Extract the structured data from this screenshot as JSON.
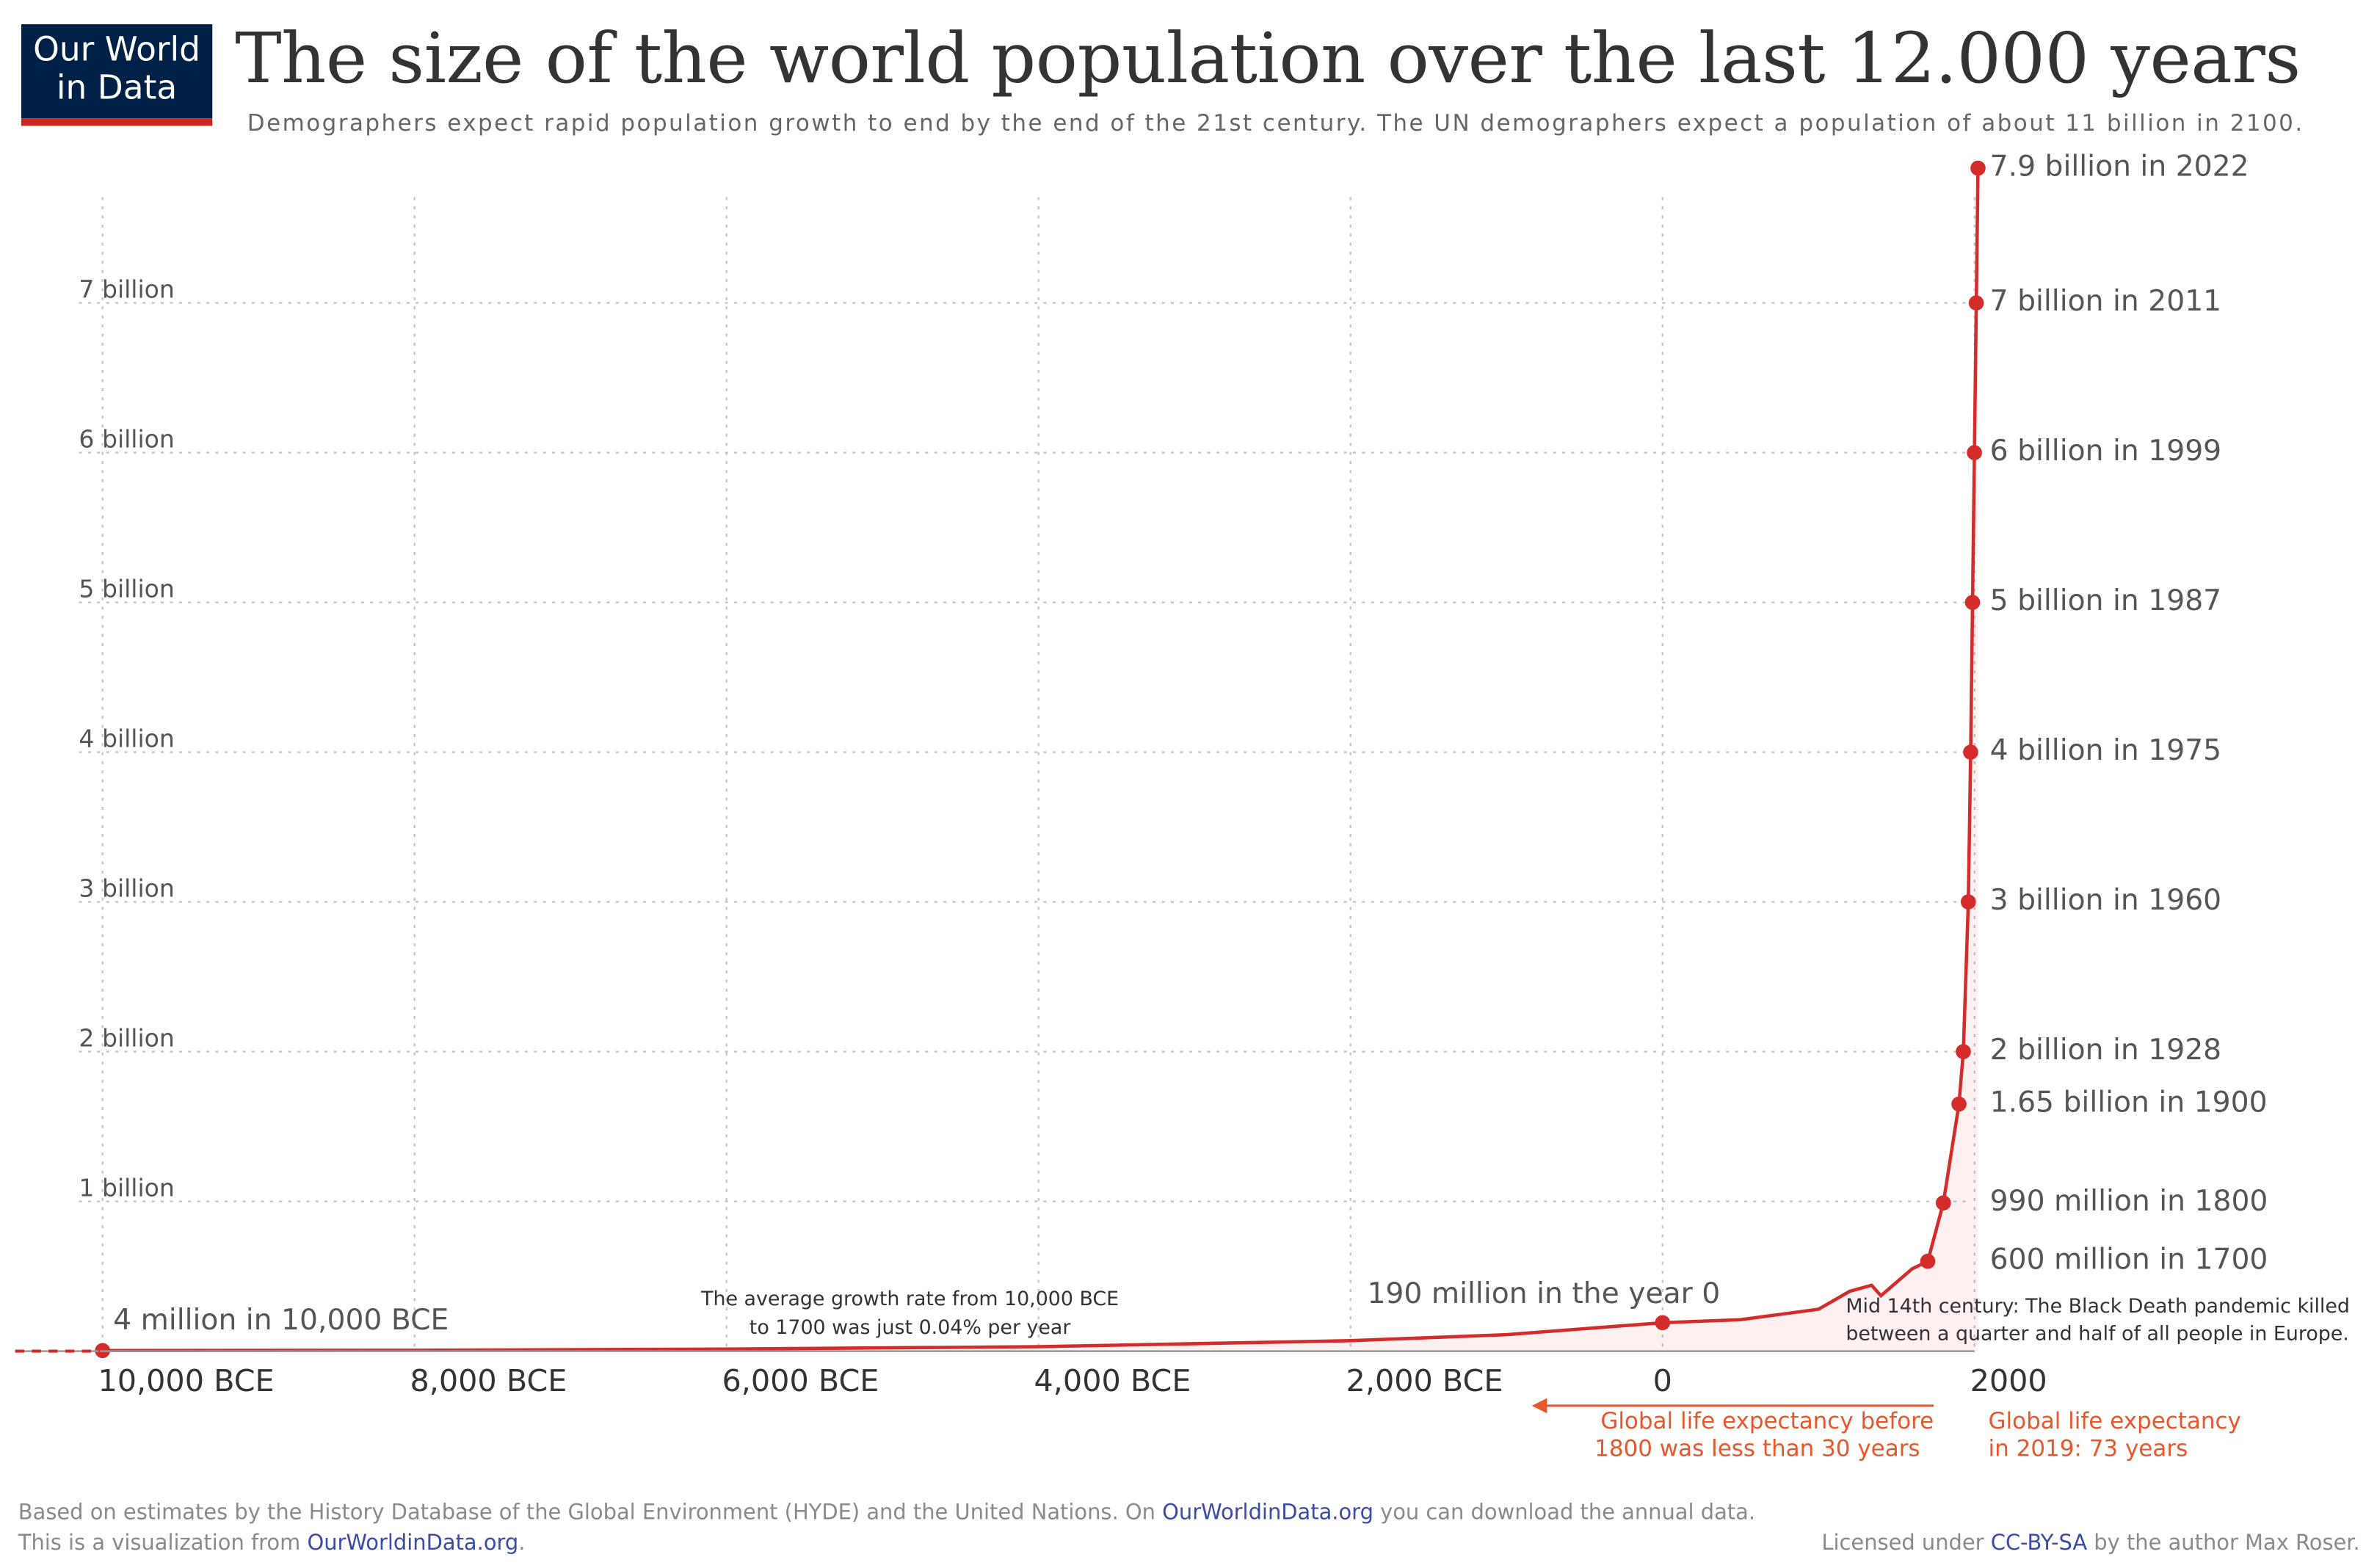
{
  "chart_data": {
    "type": "line",
    "title": "The size of the world population over the last 12.000 years",
    "subtitle": "Demographers expect rapid population growth to end by the end of the 21st century. The UN demographers expect a population of about 11 billion in 2100.",
    "logo": [
      "Our World",
      "in Data"
    ],
    "xlim": [
      -10560,
      2030
    ],
    "xticks": [
      {
        "value": -10000,
        "label": "10,000 BCE"
      },
      {
        "value": -8000,
        "label": "8,000 BCE"
      },
      {
        "value": -6000,
        "label": "6,000 BCE"
      },
      {
        "value": -4000,
        "label": "4,000 BCE"
      },
      {
        "value": -2000,
        "label": "2,000 BCE"
      },
      0,
      2000
    ],
    "ylim": [
      0,
      8
    ],
    "yticks": [
      {
        "value": 1,
        "label": "1 billion"
      },
      {
        "value": 2,
        "label": "2 billion"
      },
      {
        "value": 3,
        "label": "3 billion"
      },
      {
        "value": 4,
        "label": "4 billion"
      },
      {
        "value": 5,
        "label": "5 billion"
      },
      {
        "value": 6,
        "label": "6 billion"
      },
      {
        "value": 7,
        "label": "7 billion"
      }
    ],
    "grid": true,
    "series": [
      {
        "color": "#d42b2b",
        "x": [
          -10000,
          -8000,
          -6000,
          -4000,
          -2000,
          -1000,
          0,
          500,
          1000,
          1200,
          1340,
          1400,
          1500,
          1600,
          1700,
          1800,
          1900,
          1928,
          1960,
          1975,
          1987,
          1999,
          2011,
          2022
        ],
        "values": [
          0.004,
          0.006,
          0.014,
          0.03,
          0.07,
          0.11,
          0.19,
          0.21,
          0.28,
          0.4,
          0.44,
          0.37,
          0.46,
          0.55,
          0.6,
          0.99,
          1.65,
          2,
          3,
          4,
          5,
          6,
          7,
          7.9
        ]
      },
      {
        "color": "#d42b2b",
        "x": [
          -10000,
          0,
          1700,
          1800,
          1900,
          1928,
          1960,
          1975,
          1987,
          1999,
          2011,
          2022
        ],
        "values": [
          0.004,
          0.19,
          0.6,
          0.99,
          1.65,
          2,
          3,
          4,
          5,
          6,
          7,
          7.9
        ],
        "value_labels": [
          "4 million in 10,000 BCE",
          "190 million in the year 0",
          "600 million in 1700",
          "990 million in 1800",
          "1.65 billion in 1900",
          "2 billion in 1928",
          "3 billion in 1960",
          "4 billion in 1975",
          "5 billion in 1987",
          "6 billion in 1999",
          "7 billion in 2011",
          "7.9 billion in 2022"
        ]
      }
    ],
    "annotations": {
      "growth": [
        "The average growth rate from 10,000 BCE",
        "to 1700 was just 0.04% per year"
      ],
      "black_death": [
        "Mid 14th century: The Black Death pandemic killed",
        "between a quarter and half of all people in Europe."
      ],
      "life_before": [
        "Global life expectancy before",
        "1800 was less than 30 years"
      ],
      "life_now": [
        "Global life expectancy",
        "in 2019: 73 years"
      ]
    },
    "footer": {
      "line1": [
        "Based on estimates by the History Database of the Global Environment (HYDE) and the United Nations. On ",
        "OurWorldinData.org",
        " you can download the annual data."
      ],
      "line2": [
        "This is a visualization from ",
        "OurWorldinData.org",
        "."
      ],
      "license": [
        "Licensed under ",
        "CC-BY-SA",
        " by the author Max Roser."
      ]
    }
  }
}
